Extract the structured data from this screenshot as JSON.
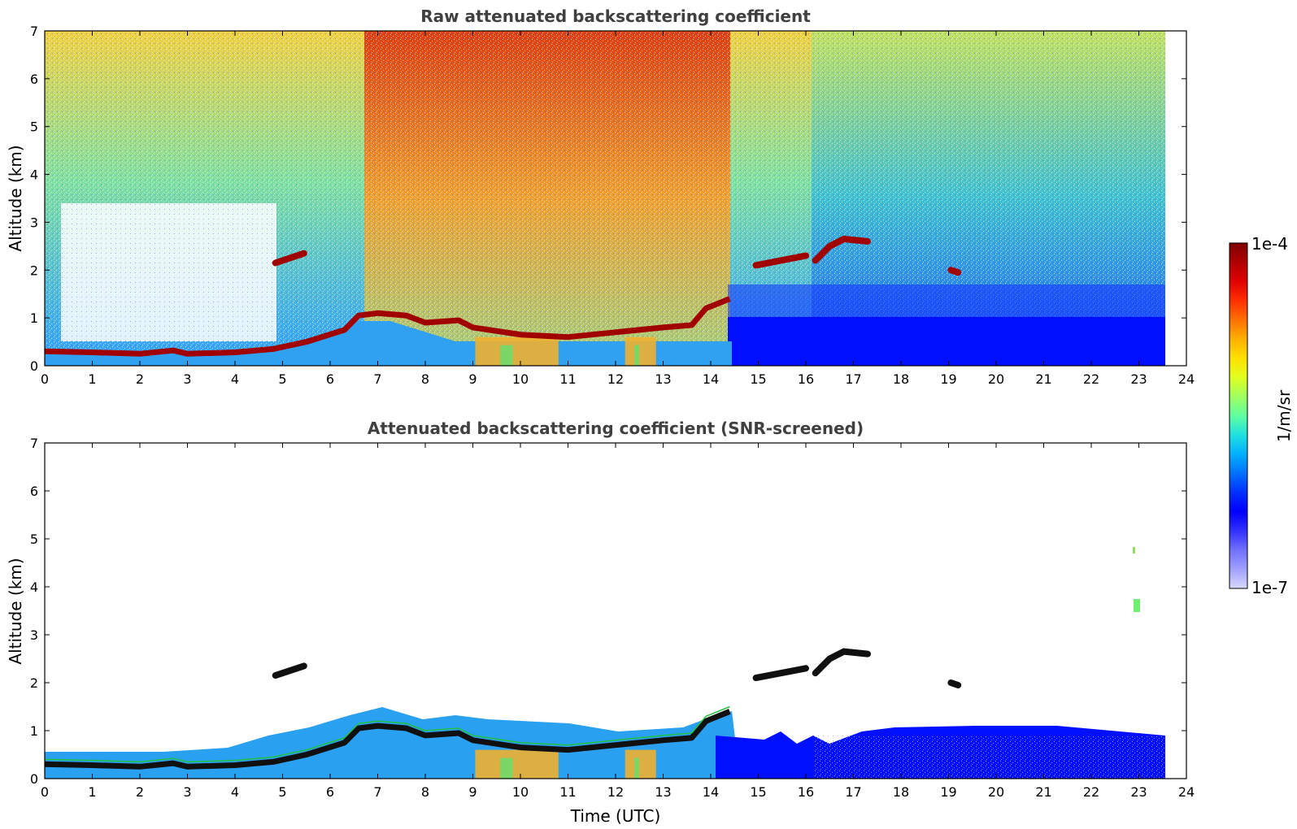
{
  "chart_data": [
    {
      "type": "heatmap",
      "title": "Raw attenuated backscattering coefficient",
      "xlabel": "",
      "ylabel": "Altitude (km)",
      "xlim": [
        0,
        24
      ],
      "ylim": [
        0,
        7
      ],
      "xticks": [
        0,
        1,
        2,
        3,
        4,
        5,
        6,
        7,
        8,
        9,
        10,
        11,
        12,
        13,
        14,
        15,
        16,
        17,
        18,
        19,
        20,
        21,
        22,
        23,
        24
      ],
      "yticks": [
        0,
        1,
        2,
        3,
        4,
        5,
        6,
        7
      ],
      "data_end_time": 23.55,
      "boundary_layer": [
        [
          0,
          0.3
        ],
        [
          1,
          0.28
        ],
        [
          2,
          0.25
        ],
        [
          2.7,
          0.32
        ],
        [
          3,
          0.25
        ],
        [
          4,
          0.28
        ],
        [
          4.8,
          0.35
        ],
        [
          5.5,
          0.5
        ],
        [
          6.3,
          0.75
        ],
        [
          6.6,
          1.05
        ],
        [
          7,
          1.1
        ],
        [
          7.6,
          1.05
        ],
        [
          8,
          0.9
        ],
        [
          8.7,
          0.95
        ],
        [
          9,
          0.8
        ],
        [
          10,
          0.65
        ],
        [
          11,
          0.6
        ],
        [
          12,
          0.7
        ],
        [
          13,
          0.8
        ],
        [
          13.6,
          0.85
        ],
        [
          13.9,
          1.2
        ],
        [
          14.4,
          1.4
        ]
      ],
      "cloud_layers": [
        {
          "name": "cloud-5h",
          "points": [
            [
              4.85,
              2.15
            ],
            [
              5.45,
              2.35
            ]
          ]
        },
        {
          "name": "cloud-15h",
          "points": [
            [
              14.95,
              2.1
            ],
            [
              16.0,
              2.3
            ]
          ]
        },
        {
          "name": "cloud-16-17h",
          "points": [
            [
              16.2,
              2.2
            ],
            [
              16.5,
              2.5
            ],
            [
              16.8,
              2.65
            ],
            [
              17.3,
              2.6
            ]
          ]
        },
        {
          "name": "cloud-19h",
          "points": [
            [
              19.05,
              2.0
            ],
            [
              19.2,
              1.95
            ]
          ]
        }
      ],
      "aerosol_columns": [
        [
          9.05,
          10.8
        ],
        [
          12.2,
          12.85
        ]
      ]
    },
    {
      "type": "heatmap",
      "title": "Attenuated backscattering coefficient (SNR-screened)",
      "xlabel": "Time (UTC)",
      "ylabel": "Altitude (km)",
      "xlim": [
        0,
        24
      ],
      "ylim": [
        0,
        7
      ],
      "xticks": [
        0,
        1,
        2,
        3,
        4,
        5,
        6,
        7,
        8,
        9,
        10,
        11,
        12,
        13,
        14,
        15,
        16,
        17,
        18,
        19,
        20,
        21,
        22,
        23,
        24
      ],
      "yticks": [
        0,
        1,
        2,
        3,
        4,
        5,
        6,
        7
      ],
      "data_end_time": 23.55
    }
  ],
  "colorbar": {
    "label": "1/m/sr",
    "max_label": "1e-4",
    "min_label": "1e-7",
    "colors": [
      "#7f0000",
      "#b00000",
      "#e00000",
      "#ff3000",
      "#ff7000",
      "#ffb000",
      "#ffe000",
      "#e0ff20",
      "#a0ff60",
      "#60ffa0",
      "#20e0e0",
      "#00b0ff",
      "#0070ff",
      "#0030ff",
      "#0000ff",
      "#3030ff",
      "#7070ff",
      "#a0a0ff",
      "#d8d8ff"
    ]
  }
}
